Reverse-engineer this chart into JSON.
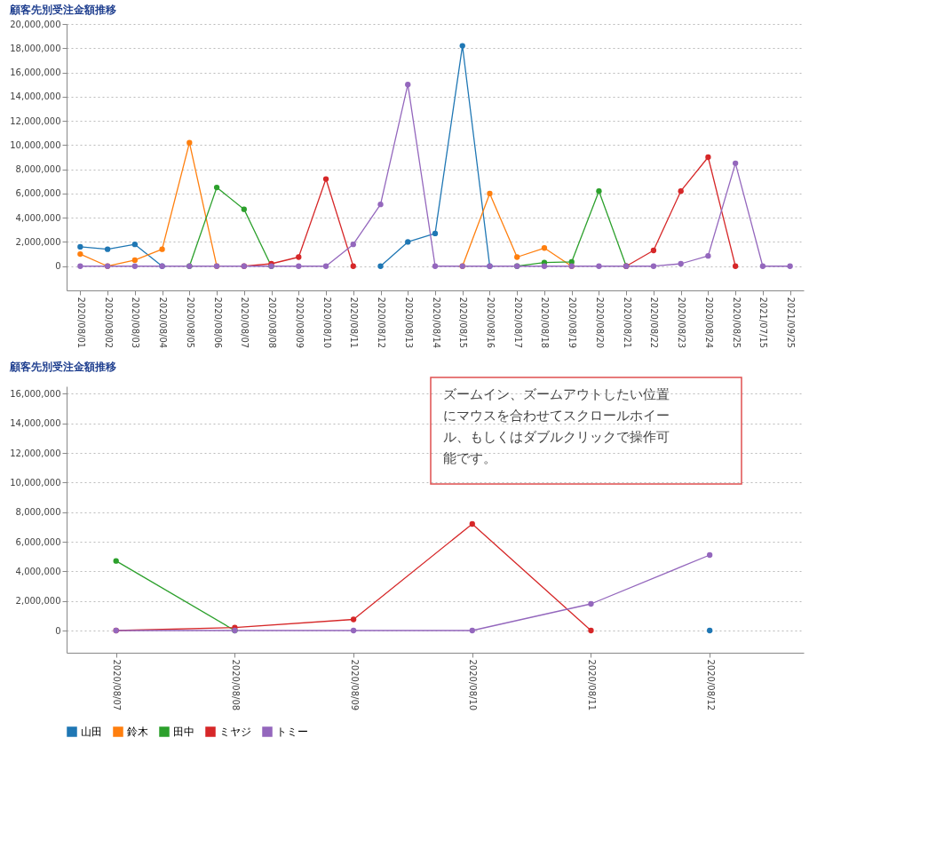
{
  "chart_data": [
    {
      "type": "line",
      "title": "顧客先別受注金額推移",
      "categories": [
        "2020/08/01",
        "2020/08/02",
        "2020/08/03",
        "2020/08/04",
        "2020/08/05",
        "2020/08/06",
        "2020/08/07",
        "2020/08/08",
        "2020/08/09",
        "2020/08/10",
        "2020/08/11",
        "2020/08/12",
        "2020/08/13",
        "2020/08/14",
        "2020/08/15",
        "2020/08/16",
        "2020/08/17",
        "2020/08/18",
        "2020/08/19",
        "2020/08/20",
        "2020/08/21",
        "2020/08/22",
        "2020/08/23",
        "2020/08/24",
        "2020/08/25",
        "2021/07/15",
        "2021/09/25"
      ],
      "series": [
        {
          "name": "山田",
          "color": "#1f77b4",
          "values": [
            1600000,
            1400000,
            1800000,
            0,
            null,
            null,
            null,
            null,
            null,
            null,
            null,
            0,
            2000000,
            2700000,
            18200000,
            0,
            null,
            null,
            null,
            null,
            null,
            null,
            null,
            null,
            null,
            null,
            null
          ]
        },
        {
          "name": "鈴木",
          "color": "#ff7f0e",
          "values": [
            1000000,
            0,
            500000,
            1400000,
            10200000,
            0,
            null,
            null,
            null,
            null,
            null,
            null,
            null,
            null,
            0,
            6000000,
            750000,
            1500000,
            0,
            null,
            null,
            null,
            null,
            null,
            null,
            null,
            null
          ]
        },
        {
          "name": "田中",
          "color": "#2ca02c",
          "values": [
            null,
            null,
            null,
            null,
            0,
            6500000,
            4700000,
            0,
            null,
            null,
            null,
            null,
            null,
            null,
            null,
            null,
            0,
            300000,
            350000,
            6200000,
            0,
            null,
            null,
            null,
            null,
            null,
            null
          ]
        },
        {
          "name": "ミヤジ",
          "color": "#d62728",
          "values": [
            null,
            null,
            null,
            null,
            null,
            null,
            0,
            200000,
            750000,
            7200000,
            0,
            null,
            null,
            null,
            null,
            null,
            null,
            null,
            null,
            null,
            0,
            1300000,
            6200000,
            9000000,
            0,
            null,
            null
          ]
        },
        {
          "name": "トミー",
          "color": "#9467bd",
          "values": [
            0,
            0,
            0,
            0,
            0,
            0,
            0,
            0,
            0,
            0,
            1800000,
            5100000,
            15000000,
            0,
            0,
            0,
            0,
            0,
            0,
            0,
            0,
            0,
            200000,
            850000,
            8500000,
            0,
            0
          ]
        }
      ],
      "ylim": [
        -2000000,
        20000000
      ],
      "yticks": [
        {
          "value": 0,
          "label": "0"
        },
        {
          "value": 2000000,
          "label": "2,000,000"
        },
        {
          "value": 4000000,
          "label": "4,000,000"
        },
        {
          "value": 6000000,
          "label": "6,000,000"
        },
        {
          "value": 8000000,
          "label": "8,000,000"
        },
        {
          "value": 10000000,
          "label": "10,000,000"
        },
        {
          "value": 12000000,
          "label": "12,000,000"
        },
        {
          "value": 14000000,
          "label": "14,000,000"
        },
        {
          "value": 16000000,
          "label": "16,000,000"
        },
        {
          "value": 18000000,
          "label": "18,000,000"
        },
        {
          "value": 20000000,
          "label": "20,000,000"
        }
      ],
      "grid": "y",
      "marker": "circle",
      "legend": "bottom"
    },
    {
      "type": "line",
      "title": "顧客先別受注金額推移",
      "x": [
        "2020-08-07",
        "2020-08-08",
        "2020-08-09",
        "2020-08-10",
        "2020-08-11",
        "2020-08-12"
      ],
      "series": [
        {
          "name": "山田",
          "color": "#1f77b4",
          "values": [
            null,
            null,
            null,
            null,
            null,
            0
          ]
        },
        {
          "name": "鈴木",
          "color": "#ff7f0e",
          "values": [
            null,
            null,
            null,
            null,
            null,
            null
          ]
        },
        {
          "name": "田中",
          "color": "#2ca02c",
          "values": [
            4700000,
            0,
            null,
            null,
            null,
            null
          ]
        },
        {
          "name": "ミヤジ",
          "color": "#d62728",
          "values": [
            0,
            200000,
            750000,
            7200000,
            0,
            null
          ]
        },
        {
          "name": "トミー",
          "color": "#9467bd",
          "values": [
            0,
            0,
            0,
            0,
            1800000,
            5100000
          ]
        }
      ],
      "xlim": [
        "2020-08-06T14:00",
        "2020-08-12T19:00"
      ],
      "xticks": [
        {
          "value": "2020-08-07",
          "label": "2020/08/07"
        },
        {
          "value": "2020-08-08",
          "label": "2020/08/08"
        },
        {
          "value": "2020-08-09",
          "label": "2020/08/09"
        },
        {
          "value": "2020-08-10",
          "label": "2020/08/10"
        },
        {
          "value": "2020-08-11",
          "label": "2020/08/11"
        },
        {
          "value": "2020-08-12",
          "label": "2020/08/12"
        }
      ],
      "ylim": [
        -1500000,
        16500000
      ],
      "yticks": [
        {
          "value": 0,
          "label": "0"
        },
        {
          "value": 2000000,
          "label": "2,000,000"
        },
        {
          "value": 4000000,
          "label": "4,000,000"
        },
        {
          "value": 6000000,
          "label": "6,000,000"
        },
        {
          "value": 8000000,
          "label": "8,000,000"
        },
        {
          "value": 10000000,
          "label": "10,000,000"
        },
        {
          "value": 12000000,
          "label": "12,000,000"
        },
        {
          "value": 14000000,
          "label": "14,000,000"
        },
        {
          "value": 16000000,
          "label": "16,000,000"
        }
      ],
      "grid": "y",
      "marker": "circle",
      "legend": "bottom",
      "annotations": [
        "ズームイン、ズームアウトしたい位置にマウスを合わせてスクロールホイール、もしくはダブルクリックで操作可能です。"
      ]
    }
  ]
}
